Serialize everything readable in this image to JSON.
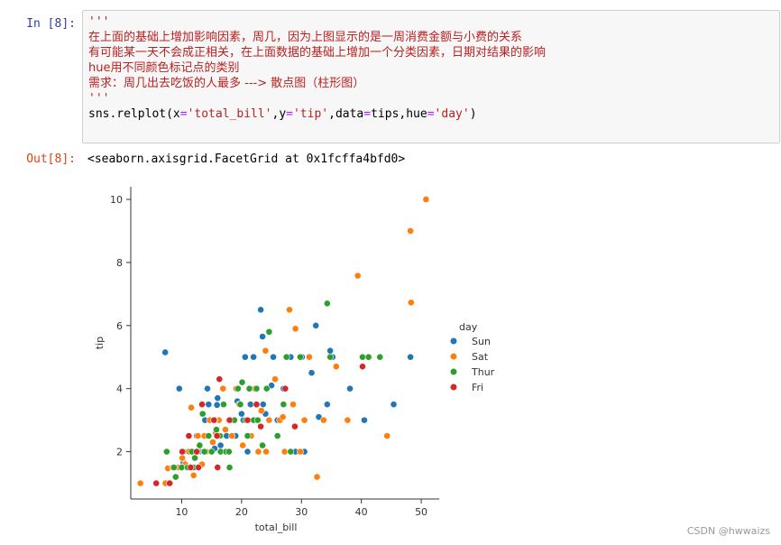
{
  "cell": {
    "in_prompt": "In  [8]:",
    "out_prompt": "Out[8]:",
    "docstring_open": "'''",
    "comment_lines": [
      "在上面的基础上增加影响因素，周几，因为上图显示的是一周消费金额与小费的关系",
      "有可能某一天不会成正相关，在上面数据的基础上增加一个分类因素，日期对结果的影响",
      "hue用不同颜色标记点的类别",
      "需求：周几出去吃饭的人最多 ---> 散点图（柱形图）"
    ],
    "docstring_close": "'''",
    "code": {
      "fn": "sns.relplot(",
      "x_kw": "x",
      "x_val": "'total_bill'",
      "y_kw": "y",
      "y_val": "'tip'",
      "data_kw": "data",
      "data_val": "tips",
      "hue_kw": "hue",
      "hue_val": "'day'",
      "close": ")"
    },
    "output_text": "<seaborn.axisgrid.FacetGrid at 0x1fcffa4bfd0>"
  },
  "watermark": "CSDN @hwwaizs",
  "chart_data": {
    "type": "scatter",
    "xlabel": "total_bill",
    "ylabel": "tip",
    "xlim": [
      1.5,
      53
    ],
    "ylim": [
      0.5,
      10.4
    ],
    "xticks": [
      10,
      20,
      30,
      40,
      50
    ],
    "yticks": [
      2,
      4,
      6,
      8,
      10
    ],
    "grid": false,
    "legend": {
      "title": "day",
      "placement": "right"
    },
    "series": [
      {
        "name": "Sun",
        "color": "#1f77b4",
        "points": [
          [
            7.25,
            5.15
          ],
          [
            9.6,
            4.0
          ],
          [
            10.3,
            1.66
          ],
          [
            10.5,
            2.0
          ],
          [
            13.0,
            2.0
          ],
          [
            13.9,
            3.0
          ],
          [
            14.3,
            4.0
          ],
          [
            15.0,
            3.0
          ],
          [
            15.9,
            3.48
          ],
          [
            16.0,
            3.7
          ],
          [
            16.5,
            2.2
          ],
          [
            17.0,
            3.5
          ],
          [
            17.5,
            2.5
          ],
          [
            18.2,
            3.0
          ],
          [
            19.3,
            3.6
          ],
          [
            20.3,
            3.0
          ],
          [
            20.6,
            5.0
          ],
          [
            21.0,
            2.0
          ],
          [
            22.0,
            5.0
          ],
          [
            22.5,
            3.48
          ],
          [
            23.2,
            6.5
          ],
          [
            23.5,
            5.65
          ],
          [
            24.0,
            3.2
          ],
          [
            25.3,
            5.0
          ],
          [
            26.0,
            3.0
          ],
          [
            27.0,
            4.0
          ],
          [
            28.2,
            5.0
          ],
          [
            29.0,
            2.0
          ],
          [
            30.1,
            5.0
          ],
          [
            31.7,
            4.5
          ],
          [
            32.4,
            6.0
          ],
          [
            32.9,
            3.1
          ],
          [
            34.3,
            3.5
          ],
          [
            34.8,
            5.2
          ],
          [
            35.2,
            5.0
          ],
          [
            38.1,
            4.0
          ],
          [
            40.5,
            3.0
          ],
          [
            45.4,
            3.5
          ],
          [
            48.2,
            5.0
          ],
          [
            25.0,
            4.1
          ],
          [
            19.0,
            2.5
          ],
          [
            21.5,
            3.5
          ],
          [
            14.5,
            3.5
          ],
          [
            12.5,
            2.5
          ],
          [
            17.8,
            2.0
          ],
          [
            30.5,
            2.0
          ],
          [
            23.6,
            3.5
          ],
          [
            16.3,
            3.0
          ],
          [
            20.0,
            3.2
          ],
          [
            15.5,
            2.1
          ]
        ]
      },
      {
        "name": "Sat",
        "color": "#ff7f0e",
        "points": [
          [
            3.1,
            1.0
          ],
          [
            7.3,
            1.0
          ],
          [
            7.7,
            1.47
          ],
          [
            8.5,
            1.5
          ],
          [
            9.5,
            1.5
          ],
          [
            10.1,
            1.8
          ],
          [
            10.6,
            1.6
          ],
          [
            11.2,
            2.0
          ],
          [
            11.6,
            3.4
          ],
          [
            12.0,
            1.25
          ],
          [
            12.7,
            2.5
          ],
          [
            13.4,
            1.6
          ],
          [
            14.1,
            2.0
          ],
          [
            14.7,
            3.0
          ],
          [
            15.2,
            2.3
          ],
          [
            15.7,
            2.6
          ],
          [
            16.2,
            3.0
          ],
          [
            16.9,
            4.0
          ],
          [
            17.3,
            2.7
          ],
          [
            17.9,
            3.0
          ],
          [
            18.4,
            2.5
          ],
          [
            19.1,
            4.0
          ],
          [
            19.6,
            3.5
          ],
          [
            20.2,
            2.2
          ],
          [
            20.9,
            3.0
          ],
          [
            21.6,
            2.5
          ],
          [
            22.2,
            4.0
          ],
          [
            22.8,
            2.0
          ],
          [
            23.3,
            3.3
          ],
          [
            24.1,
            2.0
          ],
          [
            24.6,
            3.0
          ],
          [
            25.6,
            4.3
          ],
          [
            26.4,
            3.0
          ],
          [
            27.2,
            2.0
          ],
          [
            28.0,
            6.5
          ],
          [
            28.6,
            3.5
          ],
          [
            29.0,
            5.9
          ],
          [
            29.8,
            2.0
          ],
          [
            30.5,
            3.0
          ],
          [
            31.3,
            5.0
          ],
          [
            32.6,
            1.2
          ],
          [
            33.7,
            3.0
          ],
          [
            35.8,
            4.7
          ],
          [
            37.7,
            3.0
          ],
          [
            39.4,
            7.58
          ],
          [
            44.3,
            2.5
          ],
          [
            48.2,
            9.0
          ],
          [
            48.3,
            6.73
          ],
          [
            50.8,
            10.0
          ],
          [
            24.0,
            5.2
          ],
          [
            26.9,
            3.1
          ],
          [
            18.7,
            3.0
          ],
          [
            13.8,
            2.5
          ]
        ]
      },
      {
        "name": "Thur",
        "color": "#2ca02c",
        "points": [
          [
            7.5,
            2.0
          ],
          [
            8.7,
            1.5
          ],
          [
            9.0,
            1.2
          ],
          [
            10.0,
            1.5
          ],
          [
            10.3,
            2.0
          ],
          [
            11.0,
            1.5
          ],
          [
            11.7,
            2.0
          ],
          [
            12.2,
            1.8
          ],
          [
            12.7,
            2.0
          ],
          [
            13.0,
            2.2
          ],
          [
            13.8,
            2.0
          ],
          [
            14.5,
            2.5
          ],
          [
            15.0,
            2.0
          ],
          [
            15.5,
            3.0
          ],
          [
            16.0,
            2.5
          ],
          [
            16.5,
            2.0
          ],
          [
            17.0,
            3.5
          ],
          [
            17.4,
            2.0
          ],
          [
            17.9,
            2.0
          ],
          [
            18.3,
            3.0
          ],
          [
            18.8,
            3.0
          ],
          [
            19.4,
            4.0
          ],
          [
            20.1,
            4.2
          ],
          [
            20.7,
            3.0
          ],
          [
            21.3,
            4.0
          ],
          [
            22.0,
            3.0
          ],
          [
            22.7,
            3.0
          ],
          [
            23.5,
            2.2
          ],
          [
            24.2,
            4.0
          ],
          [
            24.6,
            5.8
          ],
          [
            26.0,
            2.5
          ],
          [
            27.0,
            3.5
          ],
          [
            27.5,
            5.0
          ],
          [
            28.2,
            2.0
          ],
          [
            29.8,
            5.0
          ],
          [
            34.3,
            6.7
          ],
          [
            34.8,
            5.0
          ],
          [
            40.2,
            5.0
          ],
          [
            41.2,
            5.0
          ],
          [
            43.1,
            5.0
          ],
          [
            16.4,
            2.5
          ],
          [
            18.0,
            1.5
          ],
          [
            19.8,
            3.5
          ],
          [
            21.0,
            2.5
          ],
          [
            22.5,
            4.0
          ],
          [
            12.0,
            1.5
          ],
          [
            13.5,
            3.2
          ],
          [
            15.8,
            2.7
          ]
        ]
      },
      {
        "name": "Fri",
        "color": "#d62728",
        "points": [
          [
            5.75,
            1.0
          ],
          [
            8.0,
            1.0
          ],
          [
            10.1,
            2.0
          ],
          [
            11.2,
            2.5
          ],
          [
            12.5,
            2.0
          ],
          [
            13.4,
            3.5
          ],
          [
            15.4,
            3.0
          ],
          [
            16.3,
            4.3
          ],
          [
            18.0,
            3.0
          ],
          [
            22.5,
            3.5
          ],
          [
            23.2,
            2.8
          ],
          [
            27.3,
            4.0
          ],
          [
            28.9,
            2.8
          ],
          [
            40.2,
            4.7
          ],
          [
            15.9,
            2.5
          ],
          [
            12.8,
            1.5
          ],
          [
            21.0,
            3.0
          ],
          [
            16.0,
            1.5
          ],
          [
            11.5,
            1.5
          ]
        ]
      }
    ]
  }
}
